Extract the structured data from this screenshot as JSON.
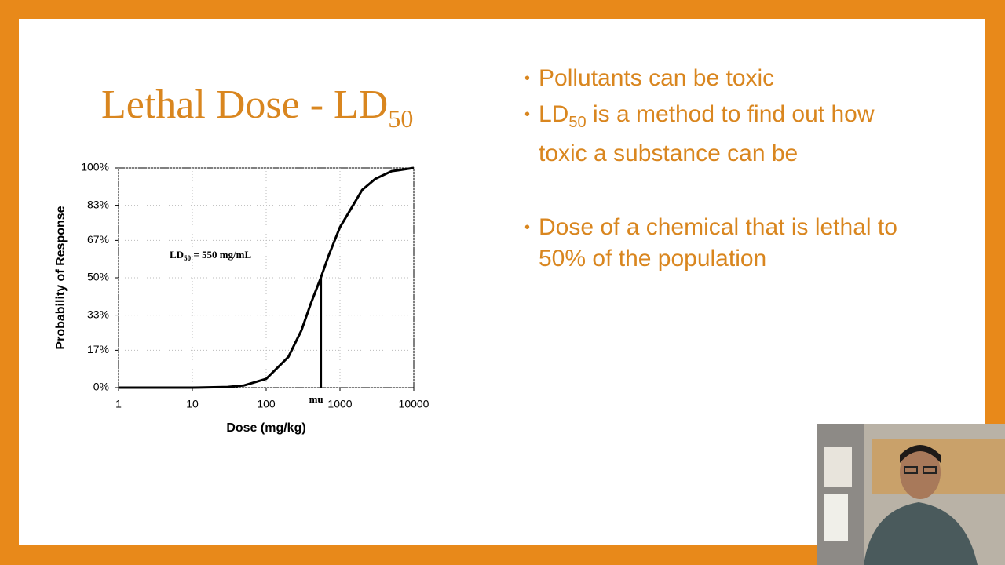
{
  "slide": {
    "title": "Lethal Dose - LD",
    "title_subscript": "50",
    "bullets": [
      {
        "text": "Pollutants can be toxic"
      },
      {
        "text": "LD",
        "subscript": "50",
        "rest": " is a method to find out how toxic a substance can be"
      },
      {
        "text": "Dose of a chemical that is lethal to 50% of the population"
      }
    ]
  },
  "chart_data": {
    "type": "line",
    "x_label": "Dose (mg/kg)",
    "y_label": "Probability of Response",
    "log_x": true,
    "grid": true,
    "color": "#000000",
    "x": [
      1,
      10,
      30,
      50,
      100,
      200,
      300,
      400,
      550,
      700,
      1000,
      2000,
      3000,
      5000,
      10000
    ],
    "values": [
      0,
      0,
      0.3,
      1,
      4,
      14,
      26,
      38,
      50,
      60,
      73,
      90,
      95,
      98.5,
      100
    ],
    "xlim": [
      1,
      10000
    ],
    "xticks": [
      1,
      10,
      100,
      1000,
      10000
    ],
    "ylim": [
      0,
      100
    ],
    "yticks": [
      {
        "value": 0,
        "label": "0%"
      },
      {
        "value": 17,
        "label": "17%"
      },
      {
        "value": 33,
        "label": "33%"
      },
      {
        "value": 50,
        "label": "50%"
      },
      {
        "value": 67,
        "label": "67%"
      },
      {
        "value": 83,
        "label": "83%"
      },
      {
        "value": 100,
        "label": "100%"
      }
    ],
    "marker_x": 550,
    "marker_y": 50,
    "marker_label": "mu",
    "annotation": {
      "text": "LD",
      "subscript": "50",
      "rest": " = 550 mg/mL"
    }
  }
}
